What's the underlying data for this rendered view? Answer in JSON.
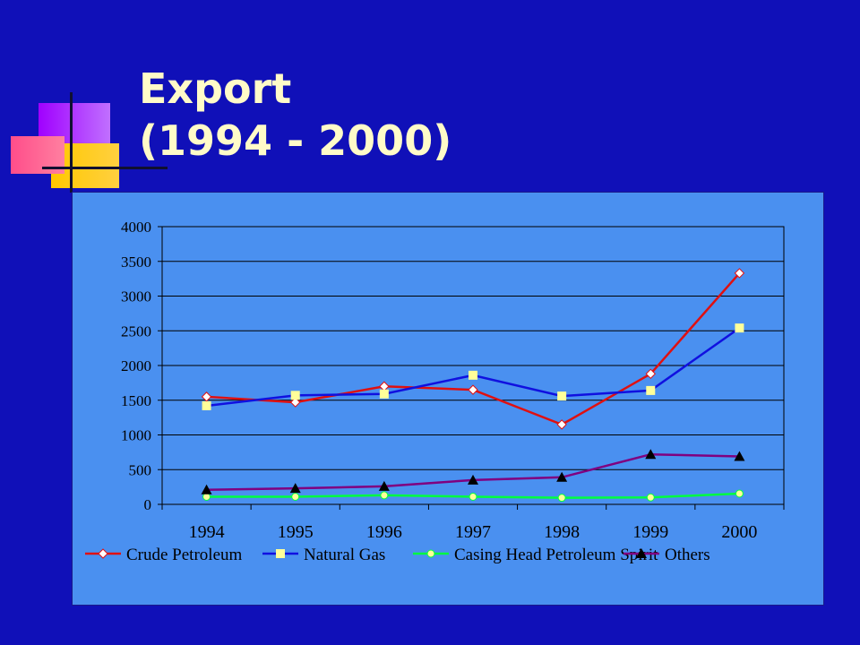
{
  "slide": {
    "title_line1": "Export",
    "title_line2": "(1994 - 2000)",
    "background": "#1010b8",
    "title_color": "#fffbc8"
  },
  "chart_data": {
    "type": "line",
    "x": [
      "1994",
      "1995",
      "1996",
      "1997",
      "1998",
      "1999",
      "2000"
    ],
    "ylim": [
      0,
      4000
    ],
    "yticks": [
      0,
      500,
      1000,
      1500,
      2000,
      2500,
      3000,
      3500,
      4000
    ],
    "grid": "horizontal",
    "legend_position": "bottom",
    "plot_background": "#4a90f0",
    "series": [
      {
        "name": "Crude Petroleum",
        "color": "#e01010",
        "marker": "diamond",
        "marker_color": "#ffffff",
        "values": [
          1550,
          1470,
          1700,
          1650,
          1150,
          1880,
          3330
        ]
      },
      {
        "name": "Natural Gas",
        "color": "#1010e0",
        "marker": "square",
        "marker_color": "#ffff99",
        "values": [
          1420,
          1570,
          1590,
          1860,
          1560,
          1640,
          2540
        ]
      },
      {
        "name": "Casing Head Petroleum Spirit",
        "color": "#00ff40",
        "marker": "circle",
        "marker_color": "#ffff99",
        "values": [
          110,
          110,
          130,
          110,
          95,
          100,
          155
        ]
      },
      {
        "name": "Others",
        "color": "#800080",
        "marker": "triangle",
        "marker_color": "#000000",
        "values": [
          210,
          230,
          260,
          350,
          390,
          720,
          690
        ]
      }
    ]
  }
}
